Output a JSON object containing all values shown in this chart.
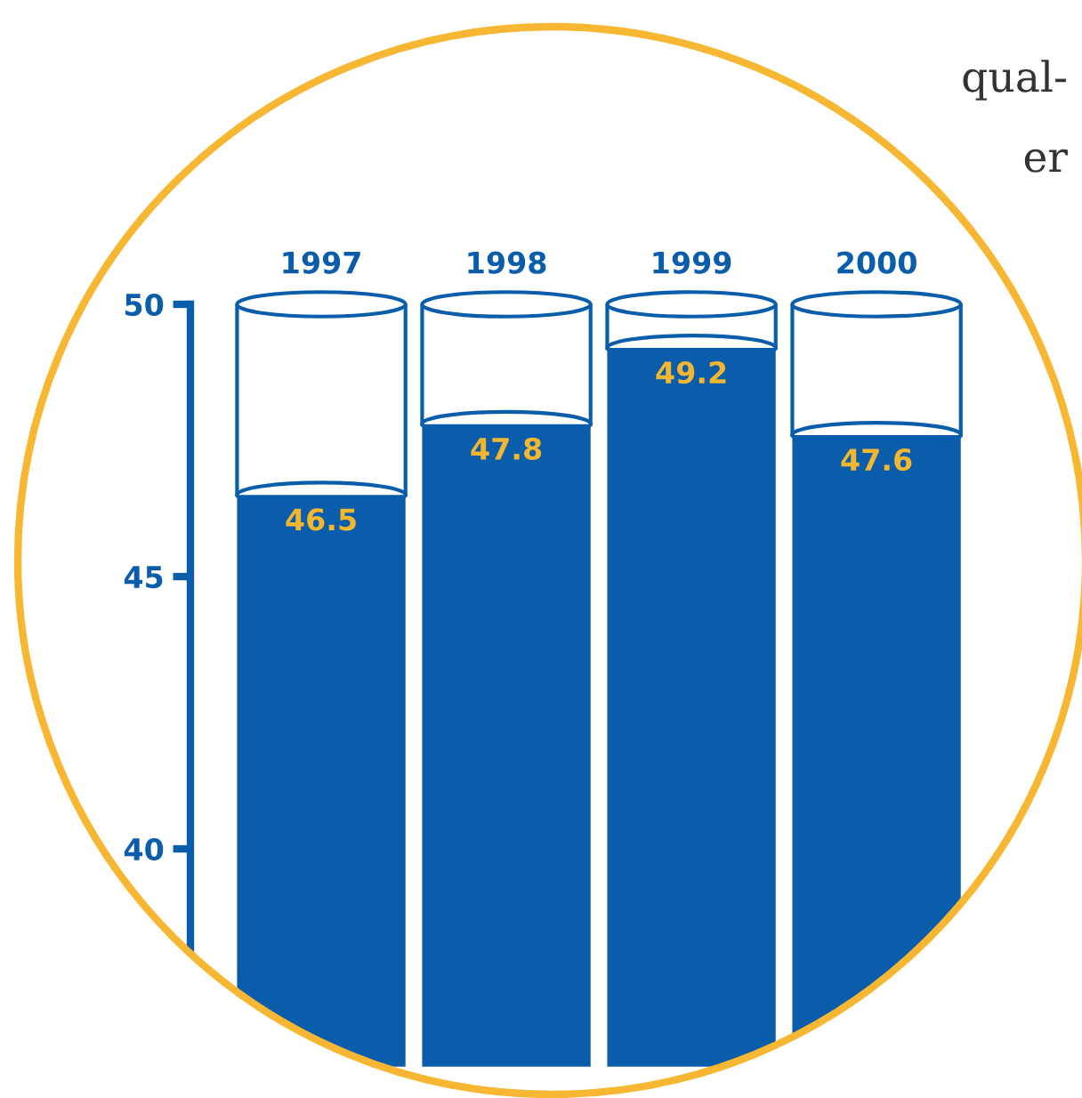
{
  "chart_data": {
    "type": "bar",
    "categories": [
      "1997",
      "1998",
      "1999",
      "2000"
    ],
    "values": [
      46.5,
      47.8,
      49.2,
      47.6
    ],
    "color": "#0a5dab",
    "ylim": [
      36,
      50
    ],
    "yticks": [
      40,
      45,
      50
    ],
    "data_labels": true,
    "grid": false,
    "annotations": [
      "qual-",
      "er"
    ]
  }
}
